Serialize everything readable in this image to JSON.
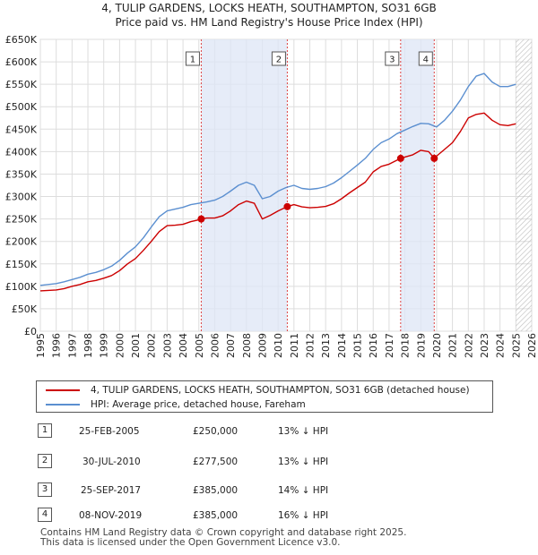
{
  "chart_data": {
    "type": "line",
    "title": "4, TULIP GARDENS, LOCKS HEATH, SOUTHAMPTON, SO31 6GB",
    "subtitle": "Price paid vs. HM Land Registry's House Price Index (HPI)",
    "xlabel": "",
    "ylabel": "",
    "xlim": [
      1995,
      2026
    ],
    "ylim": [
      0,
      650000
    ],
    "y_ticks": [
      0,
      50000,
      100000,
      150000,
      200000,
      250000,
      300000,
      350000,
      400000,
      450000,
      500000,
      550000,
      600000,
      650000
    ],
    "y_tick_labels": [
      "£0",
      "£50K",
      "£100K",
      "£150K",
      "£200K",
      "£250K",
      "£300K",
      "£350K",
      "£400K",
      "£450K",
      "£500K",
      "£550K",
      "£600K",
      "£650K"
    ],
    "x_ticks": [
      1995,
      1996,
      1997,
      1998,
      1999,
      2000,
      2001,
      2002,
      2003,
      2004,
      2005,
      2006,
      2007,
      2008,
      2009,
      2010,
      2011,
      2012,
      2013,
      2014,
      2015,
      2016,
      2017,
      2018,
      2019,
      2020,
      2021,
      2022,
      2023,
      2024,
      2025,
      2026
    ],
    "grid": true,
    "hatch_from": 2025.0,
    "shaded_periods": [
      [
        2005.15,
        2010.58
      ],
      [
        2017.73,
        2019.85
      ]
    ],
    "series": [
      {
        "name": "4, TULIP GARDENS, LOCKS HEATH, SOUTHAMPTON, SO31 6GB (detached house)",
        "color": "#cc0000",
        "x": [
          1995.0,
          1995.5,
          1996.0,
          1996.5,
          1997.0,
          1997.5,
          1998.0,
          1998.5,
          1999.0,
          1999.5,
          2000.0,
          2000.5,
          2001.0,
          2001.5,
          2002.0,
          2002.5,
          2003.0,
          2003.5,
          2004.0,
          2004.5,
          2005.0,
          2005.15,
          2005.5,
          2006.0,
          2006.5,
          2007.0,
          2007.5,
          2008.0,
          2008.5,
          2009.0,
          2009.5,
          2010.0,
          2010.58,
          2011.0,
          2011.5,
          2012.0,
          2012.5,
          2013.0,
          2013.5,
          2014.0,
          2014.5,
          2015.0,
          2015.5,
          2016.0,
          2016.5,
          2017.0,
          2017.73,
          2018.0,
          2018.5,
          2019.0,
          2019.5,
          2019.85,
          2020.0,
          2020.5,
          2021.0,
          2021.5,
          2022.0,
          2022.5,
          2023.0,
          2023.5,
          2024.0,
          2024.5,
          2025.0
        ],
        "values": [
          90000,
          91000,
          92000,
          95000,
          100000,
          104000,
          110000,
          113000,
          118000,
          124000,
          135000,
          150000,
          162000,
          180000,
          200000,
          222000,
          235000,
          236000,
          238000,
          244000,
          248000,
          250000,
          252000,
          252000,
          257000,
          268000,
          282000,
          290000,
          285000,
          250000,
          258000,
          268000,
          277500,
          282000,
          277000,
          275000,
          276000,
          278000,
          284000,
          295000,
          308000,
          320000,
          332000,
          355000,
          367000,
          372000,
          385000,
          388000,
          393000,
          403000,
          400000,
          385000,
          390000,
          405000,
          420000,
          445000,
          475000,
          483000,
          486000,
          470000,
          460000,
          458000,
          462000
        ]
      },
      {
        "name": "HPI: Average price, detached house, Fareham",
        "color": "#5b8fd0",
        "x": [
          1995.0,
          1995.5,
          1996.0,
          1996.5,
          1997.0,
          1997.5,
          1998.0,
          1998.5,
          1999.0,
          1999.5,
          2000.0,
          2000.5,
          2001.0,
          2001.5,
          2002.0,
          2002.5,
          2003.0,
          2003.5,
          2004.0,
          2004.5,
          2005.0,
          2005.5,
          2006.0,
          2006.5,
          2007.0,
          2007.5,
          2008.0,
          2008.5,
          2009.0,
          2009.5,
          2010.0,
          2010.5,
          2011.0,
          2011.5,
          2012.0,
          2012.5,
          2013.0,
          2013.5,
          2014.0,
          2014.5,
          2015.0,
          2015.5,
          2016.0,
          2016.5,
          2017.0,
          2017.5,
          2018.0,
          2018.5,
          2019.0,
          2019.5,
          2020.0,
          2020.5,
          2021.0,
          2021.5,
          2022.0,
          2022.5,
          2023.0,
          2023.5,
          2024.0,
          2024.5,
          2025.0
        ],
        "values": [
          102000,
          104000,
          106000,
          110000,
          115000,
          120000,
          127000,
          131000,
          137000,
          145000,
          158000,
          174000,
          188000,
          208000,
          232000,
          255000,
          268000,
          272000,
          276000,
          282000,
          285000,
          288000,
          292000,
          300000,
          312000,
          325000,
          332000,
          325000,
          295000,
          300000,
          312000,
          320000,
          325000,
          318000,
          316000,
          318000,
          322000,
          330000,
          342000,
          356000,
          370000,
          385000,
          405000,
          420000,
          428000,
          440000,
          448000,
          456000,
          463000,
          462000,
          455000,
          470000,
          490000,
          515000,
          545000,
          568000,
          574000,
          555000,
          545000,
          545000,
          550000
        ]
      }
    ],
    "markers": [
      {
        "label": "1",
        "x": 2005.15,
        "y": 250000
      },
      {
        "label": "2",
        "x": 2010.58,
        "y": 277500
      },
      {
        "label": "3",
        "x": 2017.73,
        "y": 385000
      },
      {
        "label": "4",
        "x": 2019.85,
        "y": 385000
      }
    ]
  },
  "legend": {
    "items": [
      {
        "label": "4, TULIP GARDENS, LOCKS HEATH, SOUTHAMPTON, SO31 6GB (detached house)",
        "color": "#cc0000"
      },
      {
        "label": "HPI: Average price, detached house, Fareham",
        "color": "#5b8fd0"
      }
    ]
  },
  "sales": [
    {
      "num": "1",
      "date": "25-FEB-2005",
      "price": "£250,000",
      "hpi": "13% ↓ HPI"
    },
    {
      "num": "2",
      "date": "30-JUL-2010",
      "price": "£277,500",
      "hpi": "13% ↓ HPI"
    },
    {
      "num": "3",
      "date": "25-SEP-2017",
      "price": "£385,000",
      "hpi": "14% ↓ HPI"
    },
    {
      "num": "4",
      "date": "08-NOV-2019",
      "price": "£385,000",
      "hpi": "16% ↓ HPI"
    }
  ],
  "footer": {
    "line1": "Contains HM Land Registry data © Crown copyright and database right 2025.",
    "line2": "This data is licensed under the Open Government Licence v3.0."
  }
}
